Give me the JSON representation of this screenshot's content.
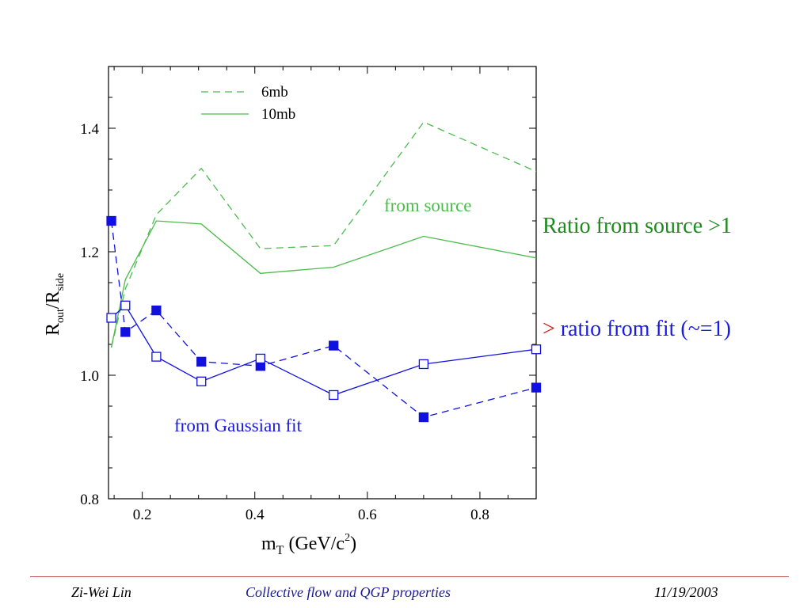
{
  "chart_data": {
    "type": "line",
    "xlabel": {
      "main": "m",
      "sub": "T",
      "unit_open": " (GeV/c",
      "sup": "2",
      "unit_close": ")"
    },
    "ylabel": {
      "r1": "R",
      "sub1": "out",
      "slash": "/R",
      "sub2": "side"
    },
    "xlim": [
      0.14,
      0.9
    ],
    "ylim": [
      0.8,
      1.5
    ],
    "xticks": [
      {
        "v": 0.2,
        "label": "0.2"
      },
      {
        "v": 0.4,
        "label": "0.4"
      },
      {
        "v": 0.6,
        "label": "0.6"
      },
      {
        "v": 0.8,
        "label": "0.8"
      }
    ],
    "yticks": [
      {
        "v": 0.8,
        "label": "0.8"
      },
      {
        "v": 1.0,
        "label": "1.0"
      },
      {
        "v": 1.2,
        "label": "1.2"
      },
      {
        "v": 1.4,
        "label": "1.4"
      }
    ],
    "legend": {
      "position": "top-left",
      "entries": [
        "6mb",
        "10mb"
      ]
    },
    "annotations": {
      "source": "from source",
      "fit": "from Gaussian fit"
    },
    "series": [
      {
        "name": "6mb",
        "group": "source",
        "style": "dashed",
        "color": "#4cbb4c",
        "marker": "none",
        "x": [
          0.145,
          0.17,
          0.225,
          0.305,
          0.41,
          0.54,
          0.7,
          0.9
        ],
        "y": [
          1.045,
          1.14,
          1.26,
          1.335,
          1.205,
          1.21,
          1.41,
          1.33
        ]
      },
      {
        "name": "10mb",
        "group": "source",
        "style": "solid",
        "color": "#4cbb4c",
        "marker": "none",
        "x": [
          0.145,
          0.17,
          0.225,
          0.305,
          0.41,
          0.54,
          0.7,
          0.9
        ],
        "y": [
          1.045,
          1.155,
          1.25,
          1.245,
          1.165,
          1.175,
          1.225,
          1.19
        ]
      },
      {
        "name": "6mb",
        "group": "fit",
        "style": "dashed",
        "color": "#1010e0",
        "marker": "filled-square",
        "x": [
          0.145,
          0.17,
          0.225,
          0.305,
          0.41,
          0.54,
          0.7,
          0.9
        ],
        "y": [
          1.25,
          1.07,
          1.105,
          1.022,
          1.015,
          1.048,
          0.932,
          0.98
        ]
      },
      {
        "name": "10mb",
        "group": "fit",
        "style": "solid",
        "color": "#1010e0",
        "marker": "open-square",
        "x": [
          0.145,
          0.17,
          0.225,
          0.305,
          0.41,
          0.54,
          0.7,
          0.9
        ],
        "y": [
          1.093,
          1.113,
          1.03,
          0.99,
          1.027,
          0.968,
          1.018,
          1.042
        ]
      }
    ]
  },
  "colors": {
    "source": "#4cbb4c",
    "fit": "#1010e0",
    "note_green": "#1e8a1e",
    "note_blue": "#1a1ae6",
    "accent_red": "#e01010",
    "footer": "#1a1a99"
  },
  "notes": {
    "source_note": "Ratio from source >1",
    "fit_note_mark": ">",
    "fit_note_text": " ratio from fit  (~=1)"
  },
  "footer": {
    "author": "Zi-Wei Lin",
    "title": "Collective flow and QGP properties",
    "date": "11/19/2003"
  }
}
